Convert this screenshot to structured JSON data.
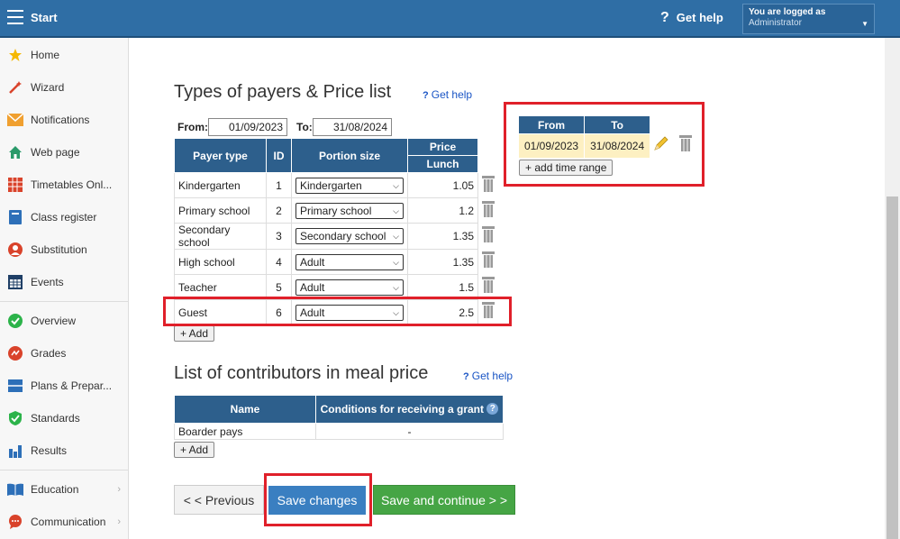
{
  "header": {
    "title": "Start",
    "get_help": "Get help",
    "login_line1": "You are logged as",
    "login_line2": "Administrator"
  },
  "sidebar": {
    "items": [
      {
        "label": "Home",
        "icon": "star-icon",
        "color": "#f5b800"
      },
      {
        "label": "Wizard",
        "icon": "wand-icon",
        "color": "#d9432b"
      },
      {
        "label": "Notifications",
        "icon": "envelope-icon",
        "color": "#f0a030"
      },
      {
        "label": "Web page",
        "icon": "house-icon",
        "color": "#2a9a6a"
      },
      {
        "label": "Timetables Onl...",
        "icon": "grid-icon",
        "color": "#d9432b"
      },
      {
        "label": "Class register",
        "icon": "book-icon",
        "color": "#2d6fb8"
      },
      {
        "label": "Substitution",
        "icon": "person-icon",
        "color": "#d9432b"
      },
      {
        "label": "Events",
        "icon": "calendar-icon",
        "color": "#1f3f66"
      },
      {
        "label": "Overview",
        "icon": "check-circle-icon",
        "color": "#2cb34a"
      },
      {
        "label": "Grades",
        "icon": "grade-icon",
        "color": "#d9432b"
      },
      {
        "label": "Plans & Prepar...",
        "icon": "plan-icon",
        "color": "#2d6fb8"
      },
      {
        "label": "Standards",
        "icon": "shield-icon",
        "color": "#2cb34a"
      },
      {
        "label": "Results",
        "icon": "bar-chart-icon",
        "color": "#2d6fb8"
      },
      {
        "label": "Education",
        "icon": "open-book-icon",
        "color": "#2d6fb8"
      },
      {
        "label": "Communication",
        "icon": "chat-icon",
        "color": "#d9432b"
      }
    ]
  },
  "payers": {
    "title": "Types of payers & Price list",
    "get_help": "Get help",
    "from_label": "From:",
    "from_value": "01/09/2023",
    "to_label": "To:",
    "to_value": "31/08/2024",
    "headers": {
      "payer_type": "Payer type",
      "id": "ID",
      "portion_size": "Portion size",
      "price": "Price",
      "lunch": "Lunch"
    },
    "rows": [
      {
        "type": "Kindergarten",
        "id": "1",
        "portion": "Kindergarten",
        "price": "1.05"
      },
      {
        "type": "Primary school",
        "id": "2",
        "portion": "Primary school",
        "price": "1.2"
      },
      {
        "type": "Secondary school",
        "id": "3",
        "portion": "Secondary school",
        "price": "1.35"
      },
      {
        "type": "High school",
        "id": "4",
        "portion": "Adult",
        "price": "1.35"
      },
      {
        "type": "Teacher",
        "id": "5",
        "portion": "Adult",
        "price": "1.5"
      },
      {
        "type": "Guest",
        "id": "6",
        "portion": "Adult",
        "price": "2.5"
      }
    ],
    "add_label": "+ Add"
  },
  "ranges": {
    "headers": {
      "from": "From",
      "to": "To"
    },
    "rows": [
      {
        "from": "01/09/2023",
        "to": "31/08/2024"
      }
    ],
    "add_range_label": "+ add time range"
  },
  "contributors": {
    "title": "List of contributors in meal price",
    "get_help": "Get help",
    "headers": {
      "name": "Name",
      "conditions": "Conditions for receiving a grant"
    },
    "rows": [
      {
        "name": "Boarder pays",
        "condition": "-"
      }
    ],
    "add_label": "+ Add"
  },
  "footer": {
    "previous": "< < Previous",
    "save": "Save changes",
    "save_continue": "Save and continue > >"
  },
  "colors": {
    "header_blue": "#2f6ea5",
    "table_header": "#2d5f8c",
    "highlight_red": "#e0202a",
    "save_blue": "#3a7fc1",
    "continue_green": "#46a545"
  }
}
